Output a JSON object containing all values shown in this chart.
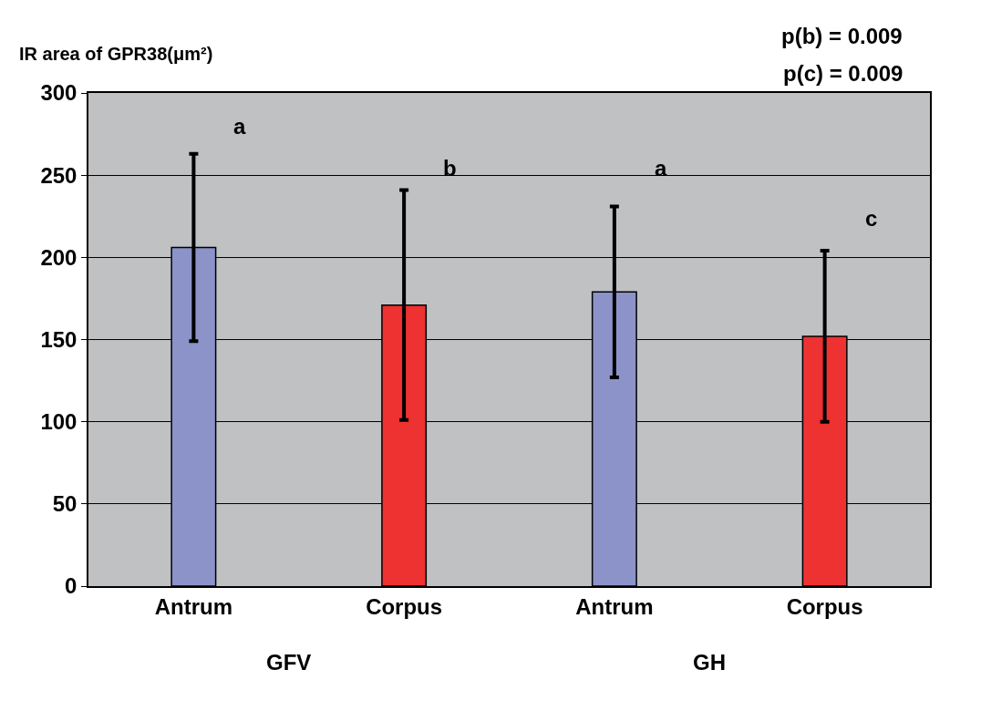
{
  "chart_data": {
    "type": "bar",
    "ylabel": "IR area of GPR38(μm²)",
    "categories": [
      "Antrum",
      "Corpus",
      "Antrum",
      "Corpus"
    ],
    "values": [
      206,
      171,
      179,
      152
    ],
    "colors": [
      "#8b93c9",
      "#ee3131",
      "#8b93c9",
      "#ee3131"
    ],
    "errors": [
      57,
      70,
      52,
      52
    ],
    "ylim": [
      0,
      300
    ],
    "yticks": [
      0,
      50,
      100,
      150,
      200,
      250,
      300
    ],
    "grid": "y",
    "annotations": [
      "a",
      "b",
      "a",
      "c",
      "GFV",
      "GH",
      "p(b) = 0.009",
      "p(c) = 0.009"
    ]
  }
}
